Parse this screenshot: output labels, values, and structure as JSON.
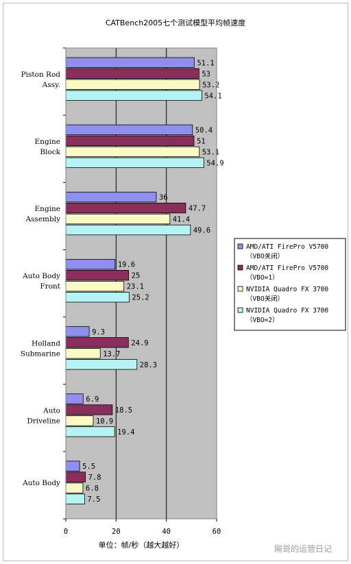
{
  "chart_data": {
    "type": "bar",
    "orientation": "horizontal",
    "title": "CATBench2005七个测试模型平均帧速度",
    "xlabel": "单位：帧/秒（越大越好）",
    "xlim": [
      0,
      60
    ],
    "xticks": [
      0,
      20,
      40,
      60
    ],
    "grid": true,
    "legend_position": "right",
    "categories": [
      [
        "Piston Rod",
        "Assy."
      ],
      [
        "Engine",
        "Block"
      ],
      [
        "Engine",
        "Assembly"
      ],
      [
        "Auto Body",
        "Front"
      ],
      [
        "Holland",
        "Submarine"
      ],
      [
        "Auto",
        "Driveline"
      ],
      [
        "Auto Body"
      ]
    ],
    "series": [
      {
        "name": [
          "AMD/ATI FirePro V5700",
          "（VBO关闭）"
        ],
        "color": "#8f8fef",
        "values": [
          51.1,
          50.4,
          36,
          19.6,
          9.3,
          6.9,
          5.5
        ]
      },
      {
        "name": [
          "AMD/ATI FirePro V5700",
          "（VBO=1）"
        ],
        "color": "#8a2f5c",
        "values": [
          53,
          51,
          47.7,
          25,
          24.9,
          18.5,
          7.8
        ]
      },
      {
        "name": [
          "NVIDIA Quadro FX 3700",
          "（VBO关闭）"
        ],
        "color": "#fafac4",
        "values": [
          53.2,
          53.1,
          41.4,
          23.1,
          13.7,
          10.9,
          6.8
        ]
      },
      {
        "name": [
          "NVIDIA Quadro FX 3700",
          "（VBO=2）"
        ],
        "color": "#b4f4f4",
        "values": [
          54.1,
          54.9,
          49.6,
          25.2,
          28.3,
          19.4,
          7.5
        ]
      }
    ]
  },
  "watermark": "飚哥的运营日记"
}
